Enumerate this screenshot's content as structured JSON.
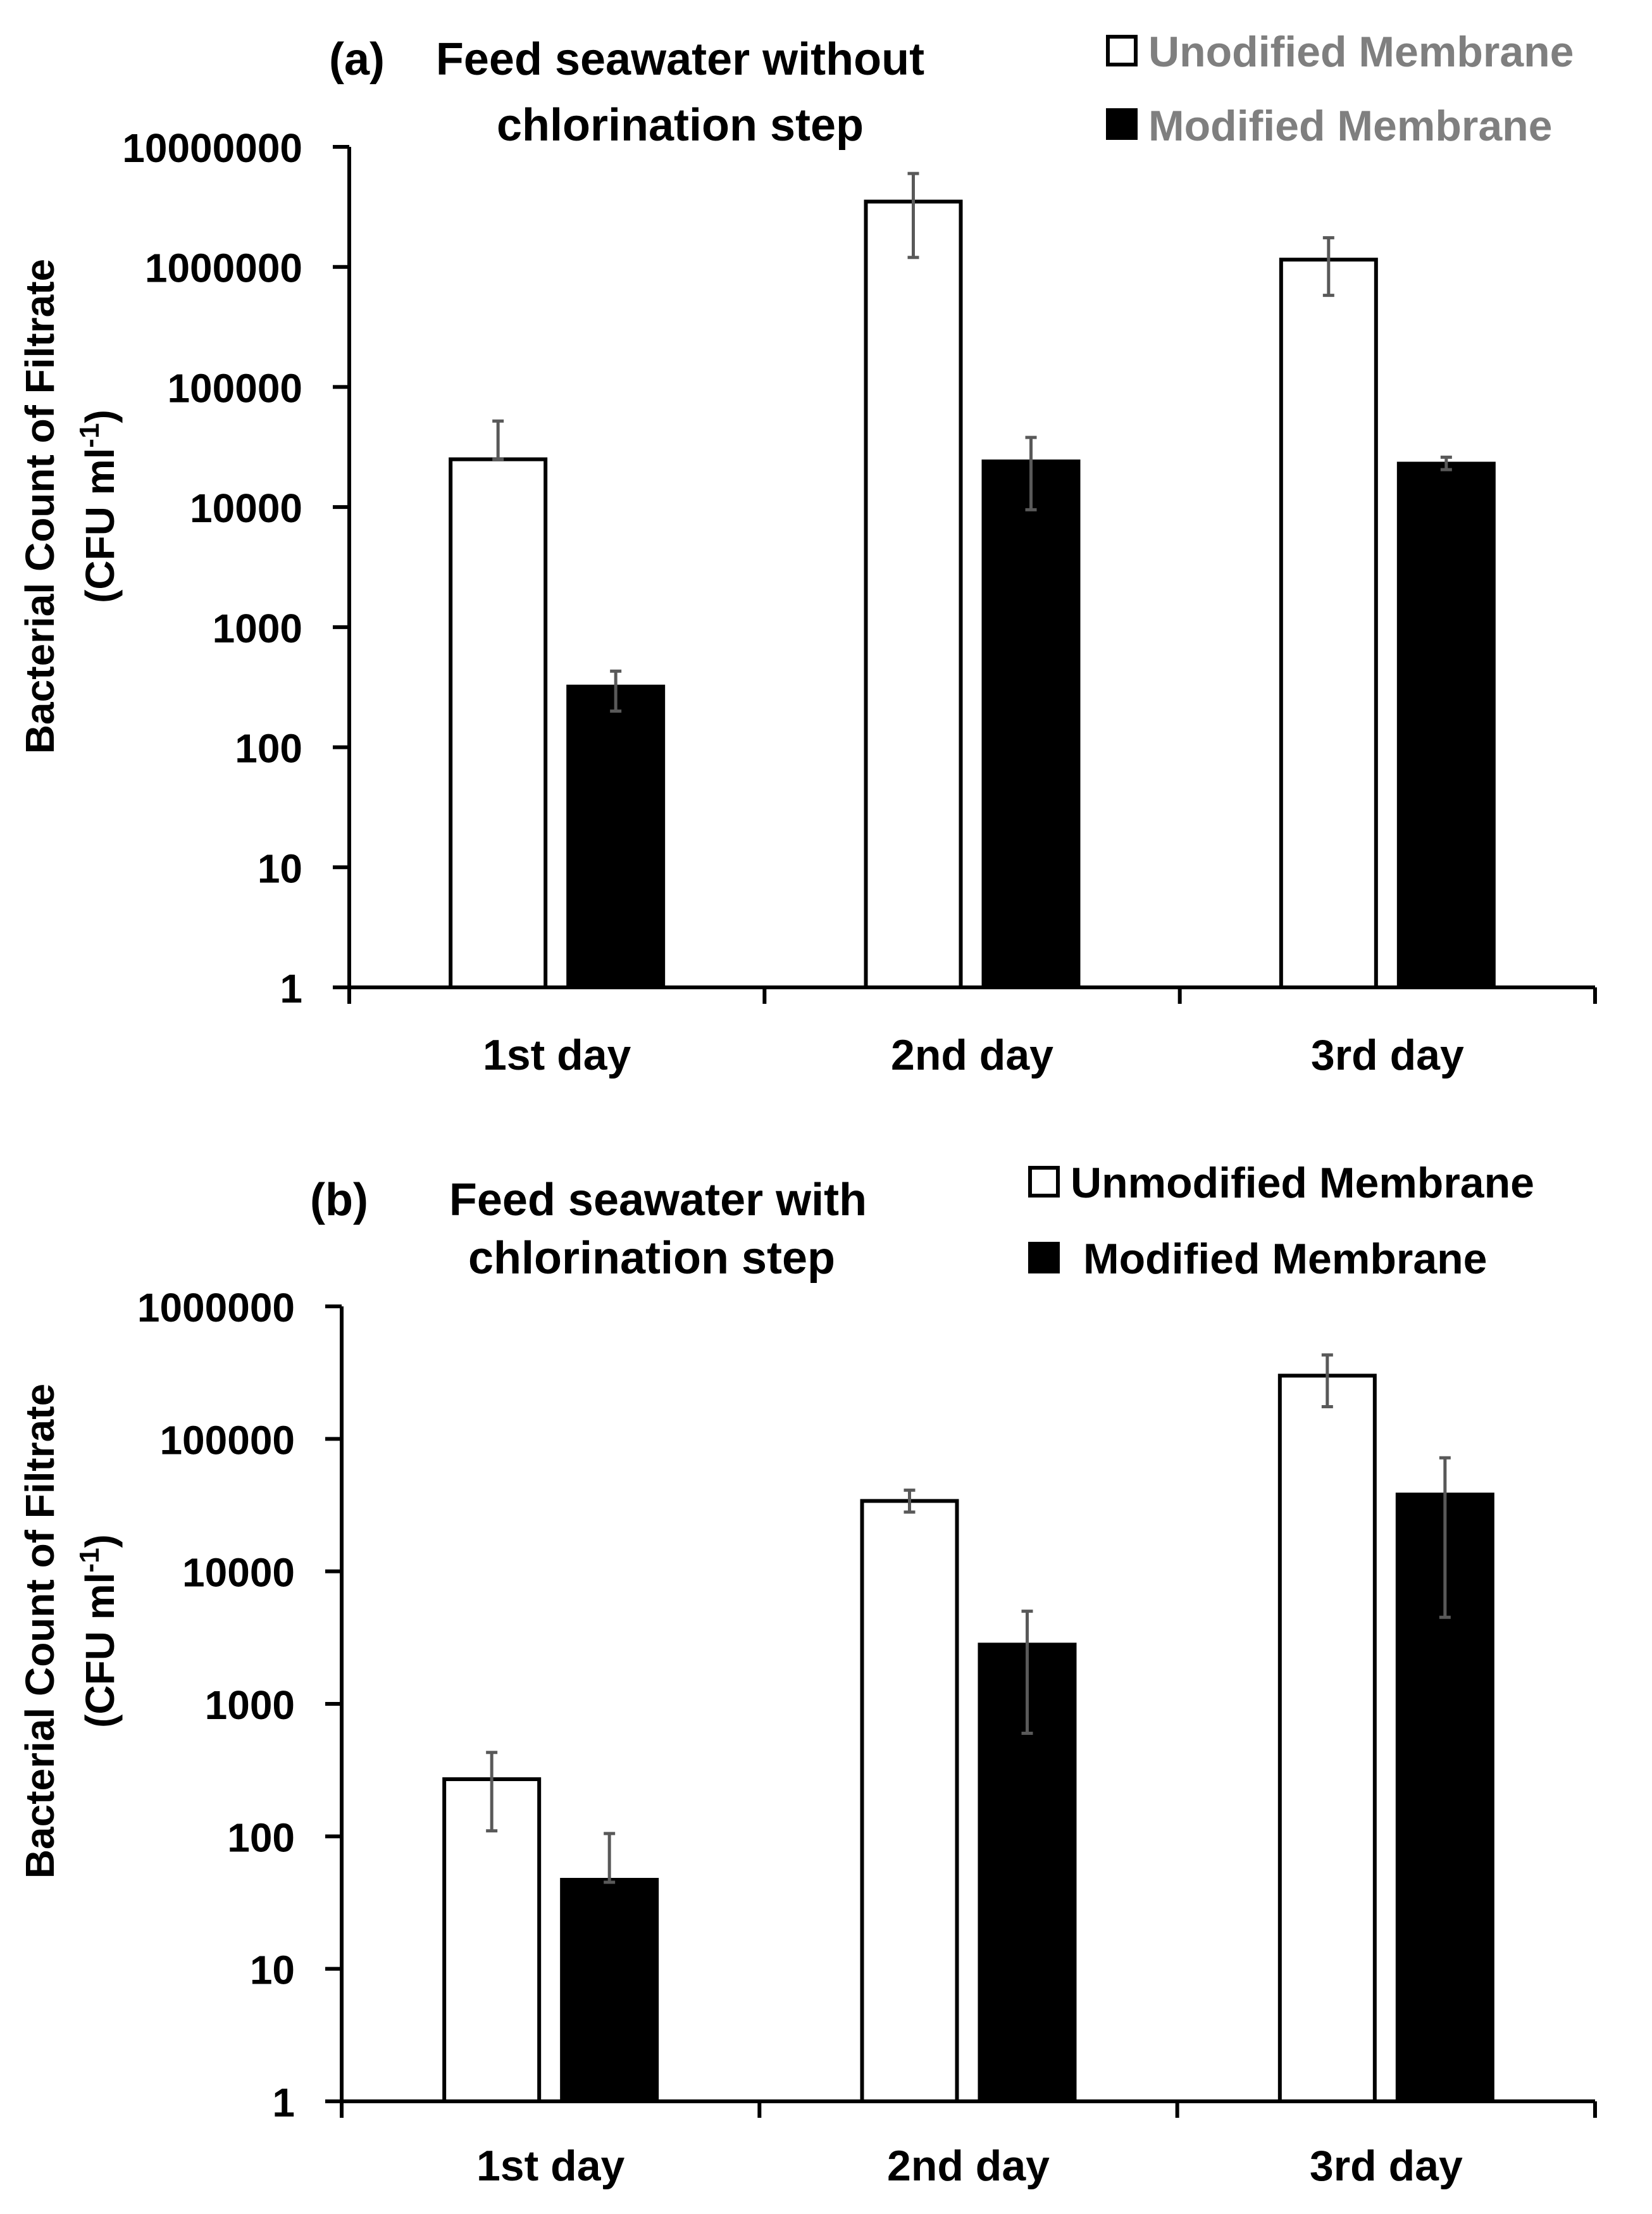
{
  "chart_data": [
    {
      "type": "bar",
      "panel_label": "(a)",
      "title_lines": [
        "Feed seawater without",
        "chlorination step"
      ],
      "ylabel": "Bacterial Count of Filtrate",
      "ylabel_unit": {
        "prefix": "(CFU ml",
        "sup": "-1",
        "suffix": ")"
      },
      "yscale": "log",
      "ylim": [
        1,
        10000000
      ],
      "yticks": [
        1,
        10,
        100,
        1000,
        10000,
        100000,
        1000000,
        10000000
      ],
      "ytick_labels": [
        "1",
        "10",
        "100",
        "1000",
        "10000",
        "100000",
        "1000000",
        "10000000"
      ],
      "categories": [
        "1st day",
        "2nd day",
        "3rd day"
      ],
      "series": [
        {
          "name": "Unodified Membrane",
          "fill": "#ffffff",
          "values": [
            25000,
            3500000,
            1150000
          ],
          "err_low": [
            25000,
            1200000,
            580000
          ],
          "err_high": [
            52000,
            6000000,
            1750000
          ]
        },
        {
          "name": "Modified Membrane",
          "fill": "#000000",
          "values": [
            320,
            24000,
            23000
          ],
          "err_low": [
            200,
            9500,
            20500
          ],
          "err_high": [
            430,
            38000,
            26000
          ]
        }
      ],
      "legend_color": "#7f7f7f",
      "legend_position": "top-right"
    },
    {
      "type": "bar",
      "panel_label": "(b)",
      "title_lines": [
        "Feed seawater with",
        "chlorination step"
      ],
      "ylabel": "Bacterial Count of Filtrate",
      "ylabel_unit": {
        "prefix": "(CFU ml",
        "sup": "-1",
        "suffix": ")"
      },
      "yscale": "log",
      "ylim": [
        1,
        1000000
      ],
      "yticks": [
        1,
        10,
        100,
        1000,
        10000,
        100000,
        1000000
      ],
      "ytick_labels": [
        "1",
        "10",
        "100",
        "1000",
        "10000",
        "100000",
        "1000000"
      ],
      "categories": [
        "1st day",
        "2nd day",
        "3rd day"
      ],
      "series": [
        {
          "name": "Unmodified Membrane",
          "fill": "#ffffff",
          "values": [
            270,
            34000,
            300000
          ],
          "err_low": [
            110,
            28000,
            175000
          ],
          "err_high": [
            430,
            41000,
            430000
          ]
        },
        {
          "name": "Modified Membrane",
          "fill": "#000000",
          "values": [
            47,
            2800,
            38000
          ],
          "err_low": [
            45,
            600,
            4500
          ],
          "err_high": [
            105,
            5000,
            72000
          ]
        }
      ],
      "legend_color": "#000000",
      "legend_position": "top-right"
    }
  ],
  "style": {
    "axis_color": "#000000",
    "text_color": "#000000",
    "errorbar_color": "#595959",
    "bar_stroke": "#000000"
  }
}
